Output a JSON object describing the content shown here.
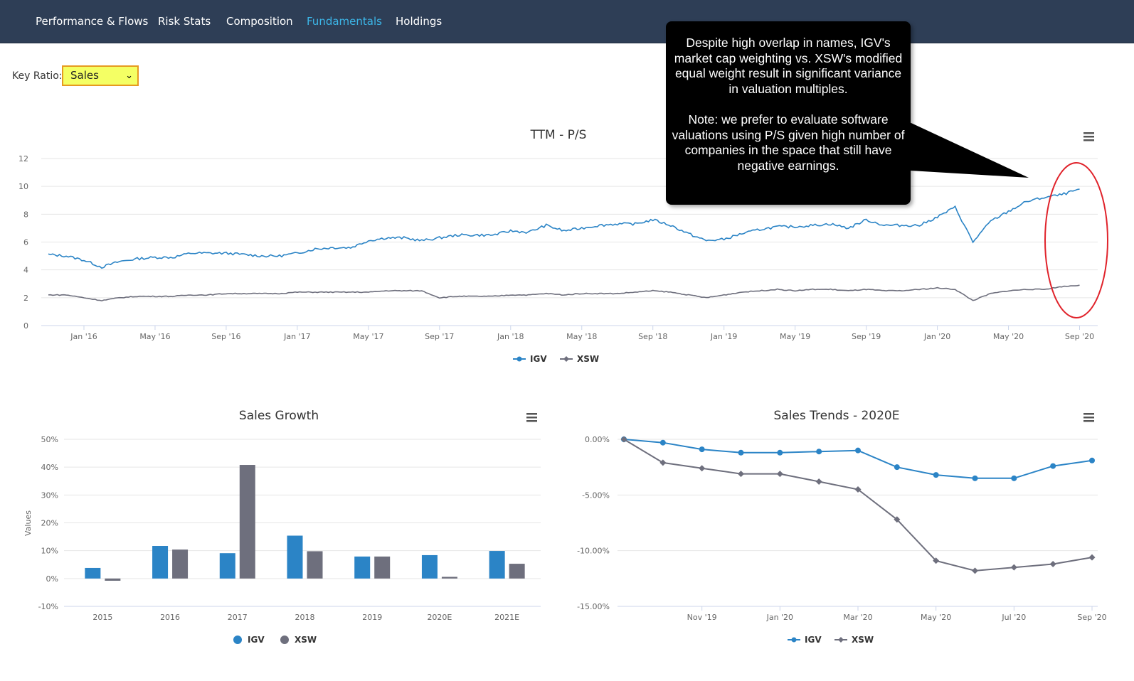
{
  "nav": {
    "tabs": [
      {
        "label": "Performance & Flows",
        "active": false
      },
      {
        "label": "Risk Stats",
        "active": false
      },
      {
        "label": "Composition",
        "active": false
      },
      {
        "label": "Fundamentals",
        "active": true
      },
      {
        "label": "Holdings",
        "active": false
      }
    ]
  },
  "controls": {
    "key_ratio_label": "Key Ratio:",
    "key_ratio_value": "Sales",
    "highlight_color": "#f4ff64"
  },
  "annotation": {
    "paragraph1": "Despite high overlap in names, IGV's market cap weighting vs. XSW's modified equal weight result in significant variance in valuation multiples.",
    "paragraph2": "Note: we prefer to evaluate software valuations using P/S given high number of companies in the space that still have negative earnings.",
    "highlight": "red ellipse around recent values (Jul '20 – Sep '20)"
  },
  "colors": {
    "igv": "#2b84c6",
    "xsw": "#6e6f7d",
    "nav_bg": "#2e3e56",
    "active_tab": "#3cb6e8",
    "highlight_ring": "#e0232b"
  },
  "chart_data": [
    {
      "type": "line",
      "title": "TTM - P/S",
      "xlabel": "",
      "ylabel": "",
      "ylim": [
        0,
        12
      ],
      "yticks": [
        "0",
        "2",
        "4",
        "6",
        "8",
        "10",
        "12"
      ],
      "xticks": [
        "Jan '16",
        "May '16",
        "Sep '16",
        "Jan '17",
        "May '17",
        "Sep '17",
        "Jan '18",
        "May '18",
        "Sep '18",
        "Jan '19",
        "May '19",
        "Sep '19",
        "Jan '20",
        "May '20",
        "Sep '20"
      ],
      "grid": true,
      "legend": "bottom-center",
      "series": [
        {
          "name": "IGV",
          "x": [
            "2015-11",
            "2015-12",
            "2016-01",
            "2016-02",
            "2016-03",
            "2016-04",
            "2016-05",
            "2016-06",
            "2016-07",
            "2016-08",
            "2016-09",
            "2016-10",
            "2016-11",
            "2016-12",
            "2017-01",
            "2017-02",
            "2017-03",
            "2017-04",
            "2017-05",
            "2017-06",
            "2017-07",
            "2017-08",
            "2017-09",
            "2017-10",
            "2017-11",
            "2017-12",
            "2018-01",
            "2018-02",
            "2018-03",
            "2018-04",
            "2018-05",
            "2018-06",
            "2018-07",
            "2018-08",
            "2018-09",
            "2018-10",
            "2018-11",
            "2018-12",
            "2019-01",
            "2019-02",
            "2019-03",
            "2019-04",
            "2019-05",
            "2019-06",
            "2019-07",
            "2019-08",
            "2019-09",
            "2019-10",
            "2019-11",
            "2019-12",
            "2020-01",
            "2020-02",
            "2020-03",
            "2020-04",
            "2020-05",
            "2020-06",
            "2020-07",
            "2020-08",
            "2020-09"
          ],
          "values": [
            5.1,
            5.0,
            4.7,
            4.2,
            4.6,
            4.8,
            4.9,
            4.9,
            5.2,
            5.2,
            5.2,
            5.1,
            5.0,
            5.0,
            5.2,
            5.5,
            5.6,
            5.6,
            6.1,
            6.3,
            6.3,
            6.1,
            6.3,
            6.5,
            6.5,
            6.5,
            6.8,
            6.7,
            7.2,
            6.8,
            7.0,
            7.2,
            7.3,
            7.3,
            7.6,
            7.2,
            6.6,
            6.1,
            6.2,
            6.6,
            6.9,
            7.1,
            7.1,
            7.2,
            7.3,
            7.0,
            7.6,
            7.2,
            7.2,
            7.2,
            7.8,
            8.5,
            6.0,
            7.5,
            8.2,
            8.9,
            9.2,
            9.4,
            9.8
          ]
        },
        {
          "name": "XSW",
          "x": [
            "2015-11",
            "2015-12",
            "2016-01",
            "2016-02",
            "2016-03",
            "2016-04",
            "2016-05",
            "2016-06",
            "2016-07",
            "2016-08",
            "2016-09",
            "2016-10",
            "2016-11",
            "2016-12",
            "2017-01",
            "2017-02",
            "2017-03",
            "2017-04",
            "2017-05",
            "2017-06",
            "2017-07",
            "2017-08",
            "2017-09",
            "2017-10",
            "2017-11",
            "2017-12",
            "2018-01",
            "2018-02",
            "2018-03",
            "2018-04",
            "2018-05",
            "2018-06",
            "2018-07",
            "2018-08",
            "2018-09",
            "2018-10",
            "2018-11",
            "2018-12",
            "2019-01",
            "2019-02",
            "2019-03",
            "2019-04",
            "2019-05",
            "2019-06",
            "2019-07",
            "2019-08",
            "2019-09",
            "2019-10",
            "2019-11",
            "2019-12",
            "2020-01",
            "2020-02",
            "2020-03",
            "2020-04",
            "2020-05",
            "2020-06",
            "2020-07",
            "2020-08",
            "2020-09"
          ],
          "values": [
            2.2,
            2.2,
            2.0,
            1.8,
            2.0,
            2.1,
            2.1,
            2.1,
            2.2,
            2.2,
            2.3,
            2.3,
            2.3,
            2.3,
            2.4,
            2.4,
            2.4,
            2.4,
            2.4,
            2.5,
            2.5,
            2.5,
            2.0,
            2.1,
            2.1,
            2.1,
            2.2,
            2.2,
            2.3,
            2.2,
            2.3,
            2.3,
            2.3,
            2.4,
            2.5,
            2.4,
            2.2,
            2.0,
            2.2,
            2.4,
            2.5,
            2.6,
            2.5,
            2.6,
            2.6,
            2.5,
            2.6,
            2.5,
            2.5,
            2.6,
            2.7,
            2.6,
            1.8,
            2.3,
            2.5,
            2.6,
            2.6,
            2.8,
            2.9
          ]
        }
      ]
    },
    {
      "type": "bar",
      "title": "Sales Growth",
      "xlabel": "",
      "ylabel": "Values",
      "ylim": [
        -10,
        50
      ],
      "yticks": [
        "-10%",
        "0%",
        "10%",
        "20%",
        "30%",
        "40%",
        "50%"
      ],
      "categories": [
        "2015",
        "2016",
        "2017",
        "2018",
        "2019",
        "2020E",
        "2021E"
      ],
      "grid": true,
      "legend": "bottom-center",
      "series": [
        {
          "name": "IGV",
          "values": [
            3.8,
            11.7,
            9.1,
            15.4,
            7.9,
            8.4,
            9.9
          ]
        },
        {
          "name": "XSW",
          "values": [
            -0.8,
            10.4,
            40.8,
            9.8,
            7.9,
            0.6,
            5.3
          ]
        }
      ]
    },
    {
      "type": "line",
      "title": "Sales Trends - 2020E",
      "xlabel": "",
      "ylabel": "",
      "ylim": [
        -15,
        0
      ],
      "yticks": [
        "0.00%",
        "-5.00%",
        "-10.00%",
        "-15.00%"
      ],
      "xticks": [
        "Nov '19",
        "Jan '20",
        "Mar '20",
        "May '20",
        "Jul '20",
        "Sep '20"
      ],
      "grid": true,
      "legend": "bottom-center",
      "series": [
        {
          "name": "IGV",
          "x": [
            "2019-09-01",
            "2019-10-01",
            "2019-11-01",
            "2019-12-01",
            "2020-01-01",
            "2020-02-01",
            "2020-03-01",
            "2020-04-01",
            "2020-05-01",
            "2020-06-01",
            "2020-07-01",
            "2020-08-01",
            "2020-09-01"
          ],
          "values": [
            0.0,
            -0.3,
            -0.9,
            -1.2,
            -1.2,
            -1.1,
            -1.0,
            -2.5,
            -3.2,
            -3.5,
            -3.5,
            -2.4,
            -1.9
          ]
        },
        {
          "name": "XSW",
          "x": [
            "2019-09-01",
            "2019-10-01",
            "2019-11-01",
            "2019-12-01",
            "2020-01-01",
            "2020-02-01",
            "2020-03-01",
            "2020-04-01",
            "2020-05-01",
            "2020-06-01",
            "2020-07-01",
            "2020-08-01",
            "2020-09-01"
          ],
          "values": [
            0.0,
            -2.1,
            -2.6,
            -3.1,
            -3.1,
            -3.8,
            -4.5,
            -7.2,
            -10.9,
            -11.8,
            -11.5,
            -11.2,
            -10.6
          ]
        }
      ]
    }
  ]
}
